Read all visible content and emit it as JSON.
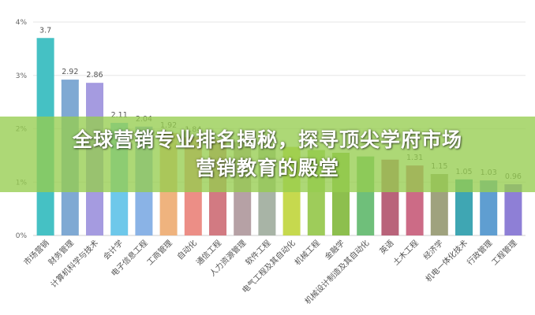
{
  "banner": {
    "line1": "全球营销专业排名揭秘，探寻顶尖学府市场",
    "line2": "营销教育的殿堂"
  },
  "chart_data": {
    "type": "bar",
    "categories": [
      "市场营销",
      "财务管理",
      "计算机科学与技术",
      "会计学",
      "电子信息工程",
      "工商管理",
      "自动化",
      "通信工程",
      "人力资源管理",
      "软件工程",
      "电气工程及其自动化",
      "机械工程",
      "金融学",
      "机械设计制造及其自动化",
      "英语",
      "土木工程",
      "经济学",
      "机电一体化技术",
      "行政管理",
      "工程管理"
    ],
    "values": [
      3.7,
      2.92,
      2.86,
      2.11,
      2.04,
      1.92,
      1.84,
      1.8,
      1.75,
      1.7,
      1.66,
      1.6,
      1.55,
      1.48,
      1.42,
      1.31,
      1.15,
      1.05,
      1.03,
      0.96
    ],
    "value_labels": [
      "3.7",
      "2.92",
      "2.86",
      "2.11",
      "2.04",
      "1.92",
      "1.84",
      "",
      "",
      "",
      "",
      "",
      "",
      "",
      "",
      "1.31",
      "1.15",
      "1.05",
      "1.03",
      "0.96"
    ],
    "yticks": [
      "0%",
      "1%",
      "2%",
      "3%",
      "4%"
    ],
    "ylim": [
      0,
      4
    ],
    "grid": true,
    "colors": [
      "#45c1c4",
      "#7fa9d3",
      "#a59be0",
      "#6ec8ea",
      "#8ab3e6",
      "#efb37e",
      "#ec8e86",
      "#d27a82",
      "#b6a1a5",
      "#a8b4a6",
      "#c6d94e",
      "#9ecc5a",
      "#8dbf4e",
      "#6fbf7a",
      "#b9637a",
      "#cc6b86",
      "#9fa27e",
      "#3fa6b3",
      "#5f9ed1",
      "#8e7fd6"
    ]
  }
}
